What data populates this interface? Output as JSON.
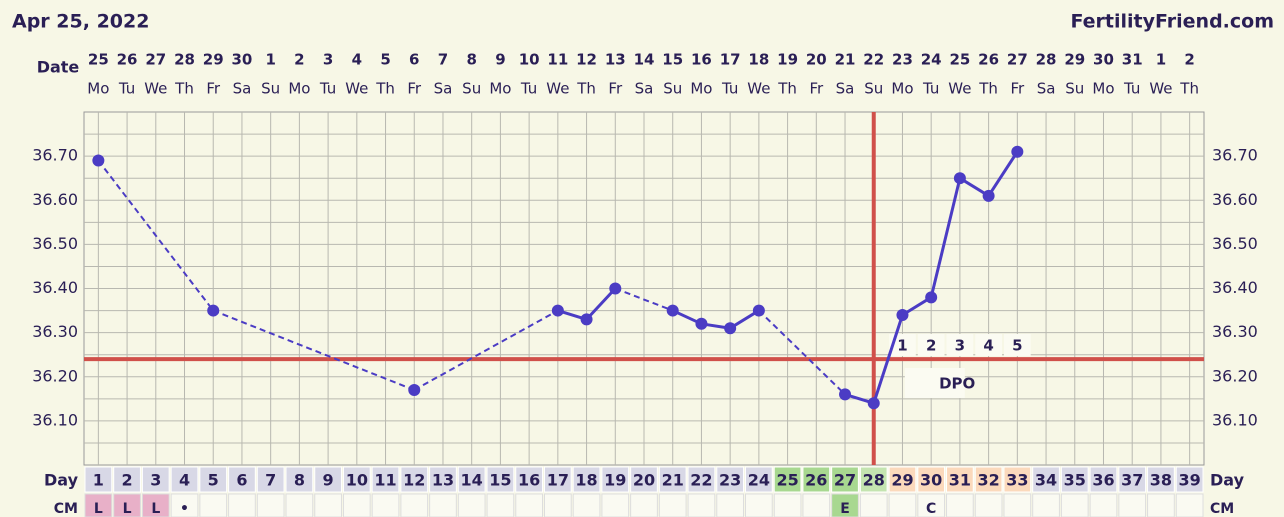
{
  "chart_data": {
    "type": "line",
    "title": "Apr 25, 2022",
    "site": "FertilityFriend.com",
    "date_label": "Date",
    "dates": [
      25,
      26,
      27,
      28,
      29,
      30,
      1,
      2,
      3,
      4,
      5,
      6,
      7,
      8,
      9,
      10,
      11,
      12,
      13,
      14,
      15,
      16,
      17,
      18,
      19,
      20,
      21,
      22,
      23,
      24,
      25,
      26,
      27,
      28,
      29,
      30,
      31,
      1,
      2
    ],
    "weekdays": [
      "Mo",
      "Tu",
      "We",
      "Th",
      "Fr",
      "Sa",
      "Su",
      "Mo",
      "Tu",
      "We",
      "Th",
      "Fr",
      "Sa",
      "Su",
      "Mo",
      "Tu",
      "We",
      "Th",
      "Fr",
      "Sa",
      "Su",
      "Mo",
      "Tu",
      "We",
      "Th",
      "Fr",
      "Sa",
      "Su",
      "Mo",
      "Tu",
      "We",
      "Th",
      "Fr",
      "Sa",
      "Su",
      "Mo",
      "Tu",
      "We",
      "Th"
    ],
    "day_label": "Day",
    "days": [
      1,
      2,
      3,
      4,
      5,
      6,
      7,
      8,
      9,
      10,
      11,
      12,
      13,
      14,
      15,
      16,
      17,
      18,
      19,
      20,
      21,
      22,
      23,
      24,
      25,
      26,
      27,
      28,
      29,
      30,
      31,
      32,
      33,
      34,
      35,
      36,
      37,
      38,
      39
    ],
    "day_colors": [
      "#d8d8e6",
      "#d8d8e6",
      "#d8d8e6",
      "#d8d8e6",
      "#d8d8e6",
      "#d8d8e6",
      "#d8d8e6",
      "#d8d8e6",
      "#d8d8e6",
      "#d8d8e6",
      "#d8d8e6",
      "#d8d8e6",
      "#d8d8e6",
      "#d8d8e6",
      "#d8d8e6",
      "#d8d8e6",
      "#d8d8e6",
      "#d8d8e6",
      "#d8d8e6",
      "#d8d8e6",
      "#d8d8e6",
      "#d8d8e6",
      "#d8d8e6",
      "#d8d8e6",
      "#a8d890",
      "#a8d890",
      "#a8d890",
      "#c4e4b0",
      "#fbd9bc",
      "#fbd9bc",
      "#fbd9bc",
      "#fbd9bc",
      "#fbd9bc",
      "#d8d8e6",
      "#d8d8e6",
      "#d8d8e6",
      "#d8d8e6",
      "#d8d8e6",
      "#d8d8e6"
    ],
    "cm_label": "CM",
    "cm": [
      "L",
      "L",
      "L",
      "•",
      null,
      null,
      null,
      null,
      null,
      null,
      null,
      null,
      null,
      null,
      null,
      null,
      null,
      null,
      null,
      null,
      null,
      null,
      null,
      null,
      null,
      null,
      "E",
      null,
      null,
      "C",
      null,
      null,
      null,
      null,
      null,
      null,
      null,
      null,
      null
    ],
    "cm_colors": [
      "#e8b0c8",
      "#e8b0c8",
      "#e8b0c8",
      "#fafaf2",
      "#fafaf2",
      "#fafaf2",
      "#fafaf2",
      "#fafaf2",
      "#fafaf2",
      "#fafaf2",
      "#fafaf2",
      "#fafaf2",
      "#fafaf2",
      "#fafaf2",
      "#fafaf2",
      "#fafaf2",
      "#fafaf2",
      "#fafaf2",
      "#fafaf2",
      "#fafaf2",
      "#fafaf2",
      "#fafaf2",
      "#fafaf2",
      "#fafaf2",
      "#fafaf2",
      "#fafaf2",
      "#a8d890",
      "#fafaf2",
      "#fafaf2",
      "#fafaf2",
      "#fafaf2",
      "#fafaf2",
      "#fafaf2",
      "#fafaf2",
      "#fafaf2",
      "#fafaf2",
      "#fafaf2",
      "#fafaf2",
      "#fafaf2"
    ],
    "xlim": [
      0.5,
      39.5
    ],
    "ylim": [
      36.0,
      36.8
    ],
    "yticks": [
      {
        "value": 36.1,
        "label": "36.10"
      },
      {
        "value": 36.2,
        "label": "36.20"
      },
      {
        "value": 36.3,
        "label": "36.30"
      },
      {
        "value": 36.4,
        "label": "36.40"
      },
      {
        "value": 36.5,
        "label": "36.50"
      },
      {
        "value": 36.6,
        "label": "36.60"
      },
      {
        "value": 36.7,
        "label": "36.70"
      }
    ],
    "ygrid": [
      36.05,
      36.1,
      36.15,
      36.2,
      36.25,
      36.3,
      36.35,
      36.4,
      36.45,
      36.5,
      36.55,
      36.6,
      36.65,
      36.7,
      36.75
    ],
    "series": [
      {
        "color": "#4b3cc4",
        "x": [
          1,
          5,
          12,
          17,
          18,
          19,
          21,
          22,
          23,
          24,
          27,
          28,
          29,
          30,
          31,
          32,
          33
        ],
        "values": [
          36.69,
          36.35,
          36.17,
          36.35,
          36.33,
          36.4,
          36.35,
          36.32,
          36.31,
          36.35,
          36.16,
          36.14,
          36.34,
          36.38,
          36.65,
          36.61,
          36.71
        ]
      }
    ],
    "coverline": 36.24,
    "ovulation_day": 28,
    "line_color": "#d0504a",
    "dpo_days": [
      29,
      30,
      31,
      32,
      33
    ],
    "dpo": [
      1,
      2,
      3,
      4,
      5
    ],
    "dpo_label": "DPO"
  }
}
